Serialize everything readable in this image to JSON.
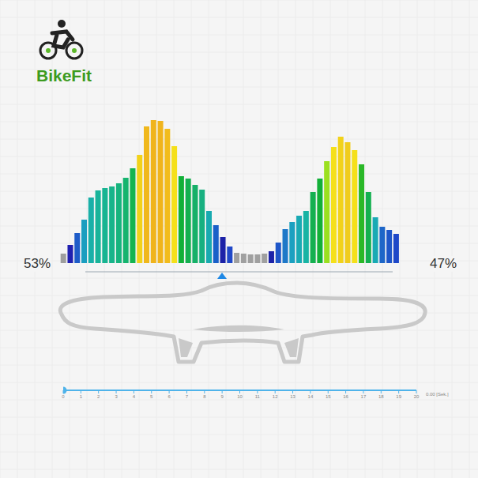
{
  "logo": "BikeFit",
  "chart_data": {
    "type": "bar",
    "categories": [
      null,
      null,
      null,
      null,
      null,
      null,
      null,
      null,
      null,
      null,
      null,
      null,
      null,
      null,
      null,
      null,
      null,
      null,
      null,
      null,
      null,
      null,
      null,
      null,
      null,
      null,
      null,
      null,
      null,
      null,
      null,
      null,
      null,
      null,
      null,
      null,
      null,
      null,
      null,
      null,
      null,
      null,
      null,
      null,
      null,
      null,
      null,
      null,
      null
    ],
    "values": [
      12,
      23,
      38,
      55,
      83,
      92,
      95,
      97,
      101,
      108,
      120,
      137,
      173,
      181,
      180,
      170,
      148,
      110,
      107,
      99,
      93,
      66,
      48,
      33,
      21,
      13,
      12,
      11,
      11,
      12,
      15,
      26,
      43,
      52,
      60,
      66,
      90,
      107,
      129,
      147,
      160,
      153,
      143,
      125,
      90,
      58,
      46,
      42,
      37
    ],
    "colors": [
      "#9e9e9e",
      "#2020b0",
      "#1e5cc8",
      "#1a9ec0",
      "#19b0a8",
      "#18b49a",
      "#18b492",
      "#17b48a",
      "#16b47e",
      "#15b46e",
      "#14b450",
      "#f2d21a",
      "#f0b81c",
      "#f0b41c",
      "#f0b41c",
      "#f2bc1c",
      "#f5e01a",
      "#12b038",
      "#14b050",
      "#16b068",
      "#17b080",
      "#18aab0",
      "#1a60c8",
      "#1c22a8",
      "#2048c8",
      "#a0a0a0",
      "#a0a0a0",
      "#a0a0a0",
      "#a0a0a0",
      "#a0a0a0",
      "#1c22a8",
      "#1e56c8",
      "#1e78c8",
      "#1aa0c0",
      "#19aab4",
      "#18b4a4",
      "#14b050",
      "#12b038",
      "#9be020",
      "#f5e01a",
      "#f2d21a",
      "#f0cc1c",
      "#f5e01a",
      "#2ab828",
      "#14b050",
      "#19aab4",
      "#1e66c8",
      "#1e56c8",
      "#1e48c8"
    ],
    "ylim": [
      0,
      190
    ],
    "tick_labels": false
  },
  "distribution": {
    "left": {
      "value": 53,
      "label": "53%"
    },
    "right": {
      "value": 47,
      "label": "47%"
    }
  },
  "timeline": {
    "xlim": [
      0,
      20
    ],
    "xticks": [
      0,
      1,
      2,
      3,
      4,
      5,
      6,
      7,
      8,
      9,
      10,
      11,
      12,
      13,
      14,
      15,
      16,
      17,
      18,
      19,
      20
    ],
    "time": {
      "value": 0,
      "label": "0.00 [Sek.]"
    },
    "color": "#4fb3ea"
  }
}
